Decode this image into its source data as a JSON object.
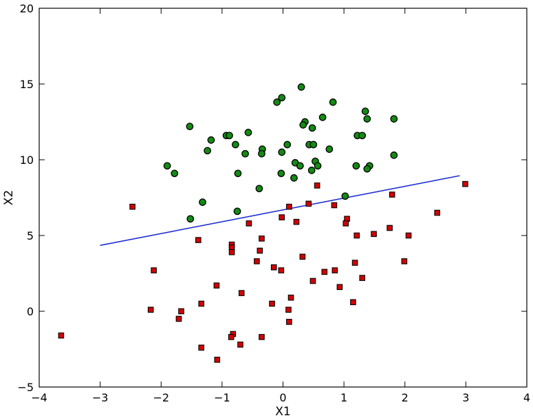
{
  "chart_data": {
    "type": "scatter",
    "xlabel": "X1",
    "ylabel": "X2",
    "xlim": [
      -4,
      4
    ],
    "ylim": [
      -5,
      20
    ],
    "xticks": [
      -4,
      -3,
      -2,
      -1,
      0,
      1,
      2,
      3,
      4
    ],
    "yticks": [
      -5,
      0,
      5,
      10,
      15,
      20
    ],
    "grid": false,
    "colors": {
      "class_circle": "#138b13",
      "class_square": "#d40000",
      "line": "#1f2fd6"
    },
    "series": [
      {
        "marker": "circle",
        "points": [
          [
            0.3,
            14.8
          ],
          [
            -0.02,
            14.1
          ],
          [
            -0.1,
            13.8
          ],
          [
            0.82,
            13.8
          ],
          [
            1.35,
            13.2
          ],
          [
            0.36,
            12.5
          ],
          [
            0.65,
            12.8
          ],
          [
            1.38,
            12.7
          ],
          [
            1.82,
            12.7
          ],
          [
            -1.53,
            12.2
          ],
          [
            0.33,
            12.3
          ],
          [
            0.48,
            12.1
          ],
          [
            -0.57,
            11.8
          ],
          [
            1.22,
            11.6
          ],
          [
            1.3,
            11.6
          ],
          [
            -1.18,
            11.3
          ],
          [
            -0.93,
            11.6
          ],
          [
            -0.88,
            11.6
          ],
          [
            -0.78,
            11.0
          ],
          [
            0.07,
            11.0
          ],
          [
            0.43,
            11.0
          ],
          [
            0.5,
            11.0
          ],
          [
            -0.34,
            10.7
          ],
          [
            0.76,
            10.7
          ],
          [
            -1.24,
            10.6
          ],
          [
            -0.02,
            10.5
          ],
          [
            -0.62,
            10.4
          ],
          [
            -0.35,
            10.4
          ],
          [
            1.82,
            10.3
          ],
          [
            0.53,
            9.9
          ],
          [
            0.2,
            9.8
          ],
          [
            0.28,
            9.6
          ],
          [
            1.2,
            9.6
          ],
          [
            0.57,
            9.6
          ],
          [
            1.42,
            9.6
          ],
          [
            -1.9,
            9.6
          ],
          [
            1.38,
            9.4
          ],
          [
            0.47,
            9.3
          ],
          [
            -1.78,
            9.1
          ],
          [
            -0.74,
            9.1
          ],
          [
            -0.03,
            9.1
          ],
          [
            0.18,
            8.8
          ],
          [
            -0.39,
            8.1
          ],
          [
            1.02,
            7.6
          ],
          [
            -1.32,
            7.2
          ],
          [
            -0.75,
            6.6
          ],
          [
            -1.52,
            6.1
          ]
        ]
      },
      {
        "marker": "square",
        "points": [
          [
            2.99,
            8.4
          ],
          [
            0.56,
            8.3
          ],
          [
            1.79,
            7.7
          ],
          [
            0.42,
            7.1
          ],
          [
            0.1,
            6.9
          ],
          [
            -2.47,
            6.9
          ],
          [
            0.84,
            7.0
          ],
          [
            2.53,
            6.5
          ],
          [
            1.05,
            6.1
          ],
          [
            -0.02,
            6.2
          ],
          [
            0.22,
            5.9
          ],
          [
            -0.56,
            5.8
          ],
          [
            1.03,
            5.8
          ],
          [
            1.75,
            5.5
          ],
          [
            1.49,
            5.1
          ],
          [
            1.21,
            5.0
          ],
          [
            2.06,
            5.0
          ],
          [
            -0.35,
            4.8
          ],
          [
            -1.39,
            4.7
          ],
          [
            -0.84,
            4.4
          ],
          [
            -0.84,
            4.2
          ],
          [
            -0.38,
            4.0
          ],
          [
            -0.84,
            3.9
          ],
          [
            0.32,
            3.6
          ],
          [
            -0.43,
            3.3
          ],
          [
            1.99,
            3.3
          ],
          [
            1.18,
            3.2
          ],
          [
            -0.15,
            2.9
          ],
          [
            -0.03,
            2.7
          ],
          [
            0.85,
            2.7
          ],
          [
            -2.12,
            2.7
          ],
          [
            0.68,
            2.6
          ],
          [
            1.3,
            2.2
          ],
          [
            0.49,
            2.0
          ],
          [
            -1.09,
            1.7
          ],
          [
            0.93,
            1.6
          ],
          [
            -0.68,
            1.2
          ],
          [
            0.13,
            0.9
          ],
          [
            1.15,
            0.6
          ],
          [
            -1.34,
            0.5
          ],
          [
            -0.18,
            0.5
          ],
          [
            -2.17,
            0.1
          ],
          [
            0.09,
            0.1
          ],
          [
            -1.67,
            0.0
          ],
          [
            -1.71,
            -0.5
          ],
          [
            0.1,
            -0.7
          ],
          [
            -3.64,
            -1.6
          ],
          [
            -0.82,
            -1.5
          ],
          [
            -0.35,
            -1.7
          ],
          [
            -0.85,
            -1.7
          ],
          [
            -0.7,
            -2.2
          ],
          [
            -1.34,
            -2.4
          ],
          [
            -1.08,
            -3.2
          ]
        ]
      }
    ],
    "line": {
      "x": [
        -3.0,
        2.9
      ],
      "y": [
        4.35,
        8.95
      ]
    }
  }
}
